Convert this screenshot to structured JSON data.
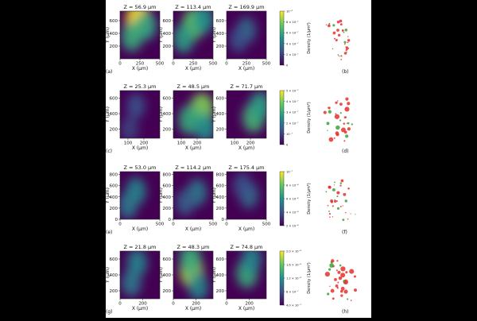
{
  "chart_data": [
    {
      "type": "heatmap",
      "panel_label": "(a)",
      "side_label": "(b)",
      "subplots": [
        {
          "title": "Z = 56.9 µm",
          "hotspots": [
            [
              230,
              600,
              1.0
            ],
            [
              150,
              350,
              0.6
            ],
            [
              330,
              520,
              0.55
            ]
          ]
        },
        {
          "title": "Z = 113.4 µm",
          "hotspots": [
            [
              260,
              550,
              0.75
            ],
            [
              130,
              320,
              0.55
            ],
            [
              380,
              620,
              0.5
            ]
          ]
        },
        {
          "title": "Z = 169.9 µm",
          "hotspots": [
            [
              250,
              450,
              0.35
            ],
            [
              150,
              300,
              0.25
            ]
          ]
        }
      ],
      "xlabel": "X (µm)",
      "ylabel": "Y (µm)",
      "xticks": [
        0,
        250,
        500
      ],
      "yticks": [
        200,
        400,
        600
      ],
      "xlim": [
        0,
        500
      ],
      "ylim": [
        0,
        750
      ],
      "colorbar": {
        "label": "Density (1/µm²)",
        "ticks": [
          "0",
          "2 × 10⁻⁷",
          "4 × 10⁻⁷",
          "6 × 10⁻⁷",
          "8 × 10⁻⁷",
          "10⁻⁶"
        ]
      }
    },
    {
      "type": "heatmap",
      "panel_label": "(c)",
      "side_label": "(d)",
      "subplots": [
        {
          "title": "Z = 25.3 µm",
          "hotspots": [
            [
              150,
              500,
              0.25
            ],
            [
              110,
              200,
              0.2
            ]
          ]
        },
        {
          "title": "Z = 48.5 µm",
          "hotspots": [
            [
              230,
              460,
              0.8
            ],
            [
              150,
              320,
              0.6
            ],
            [
              250,
              220,
              0.5
            ]
          ]
        },
        {
          "title": "Z = 71.7 µm",
          "hotspots": [
            [
              220,
              350,
              0.65
            ],
            [
              260,
              500,
              0.55
            ]
          ]
        }
      ],
      "xlabel": "X (µm)",
      "ylabel": "Y (µm)",
      "xticks": [
        100,
        200
      ],
      "yticks": [
        200,
        400,
        600
      ],
      "xlim": [
        50,
        300
      ],
      "ylim": [
        80,
        700
      ],
      "colorbar": {
        "label": "Density (1/µm²)",
        "ticks": [
          "0",
          "10⁻⁷",
          "2 × 10⁻⁷",
          "3 × 10⁻⁷",
          "4 × 10⁻⁷",
          "5 × 10⁻⁷"
        ]
      }
    },
    {
      "type": "heatmap",
      "panel_label": "(e)",
      "side_label": "(f)",
      "subplots": [
        {
          "title": "Z = 53.0 µm",
          "hotspots": [
            [
              200,
              500,
              0.45
            ],
            [
              100,
              250,
              0.4
            ]
          ]
        },
        {
          "title": "Z = 114.2 µm",
          "hotspots": [
            [
              300,
              480,
              0.4
            ],
            [
              150,
              300,
              0.3
            ]
          ]
        },
        {
          "title": "Z = 175.4 µm",
          "hotspots": [
            [
              280,
              430,
              0.35
            ],
            [
              200,
              600,
              0.25
            ]
          ]
        }
      ],
      "xlabel": "X (µm)",
      "ylabel": "Y (µm)",
      "xticks": [
        0,
        500
      ],
      "yticks": [
        0,
        200,
        400,
        600,
        800
      ],
      "xlim": [
        0,
        500
      ],
      "ylim": [
        0,
        850
      ],
      "colorbar": {
        "label": "Density (1/µm²)",
        "ticks": [
          "2 × 10⁻⁸",
          "4 × 10⁻⁸",
          "6 × 10⁻⁸",
          "8 × 10⁻⁸",
          "10⁻⁷"
        ]
      }
    },
    {
      "type": "heatmap",
      "panel_label": "(g)",
      "side_label": "(h)",
      "subplots": [
        {
          "title": "Z = 21.8 µm",
          "hotspots": [
            [
              150,
              550,
              0.45
            ],
            [
              100,
              300,
              0.4
            ]
          ]
        },
        {
          "title": "Z = 48.3 µm",
          "hotspots": [
            [
              160,
              450,
              0.85
            ],
            [
              150,
              600,
              0.6
            ],
            [
              220,
              250,
              0.45
            ]
          ]
        },
        {
          "title": "Z = 74.8 µm",
          "hotspots": [
            [
              180,
              420,
              0.6
            ],
            [
              220,
              600,
              0.45
            ]
          ]
        }
      ],
      "xlabel": "X (µm)",
      "ylabel": "Y (µm)",
      "xticks": [
        0,
        200
      ],
      "yticks": [
        200,
        400,
        600
      ],
      "xlim": [
        0,
        350
      ],
      "ylim": [
        100,
        700
      ],
      "colorbar": {
        "label": "Density (1/µm²)",
        "ticks": [
          "4.0 × 10⁻⁷",
          "8 × 10⁻⁷",
          "1.2 × 10⁻⁶",
          "1.6 × 10⁻⁶",
          "2.0 × 10⁻⁶"
        ]
      }
    }
  ]
}
